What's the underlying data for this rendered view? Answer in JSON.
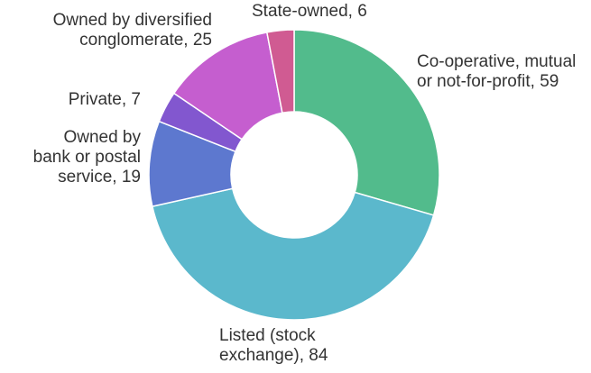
{
  "chart_data": {
    "type": "pie",
    "donut": true,
    "title": "",
    "start_angle_deg": 0,
    "direction": "clockwise",
    "slices": [
      {
        "label_lines": [
          "Co-operative, mutual",
          "or not-for-profit, 59"
        ],
        "category": "Co-operative, mutual or not-for-profit",
        "value": 59,
        "color": "#52bb8c"
      },
      {
        "label_lines": [
          "Listed (stock",
          "exchange), 84"
        ],
        "category": "Listed (stock exchange)",
        "value": 84,
        "color": "#5bb8cc"
      },
      {
        "label_lines": [
          "Owned by",
          "bank or postal",
          "service, 19"
        ],
        "category": "Owned by bank or postal service",
        "value": 19,
        "color": "#5d78cf"
      },
      {
        "label_lines": [
          "Private, 7"
        ],
        "category": "Private",
        "value": 7,
        "color": "#8257cf"
      },
      {
        "label_lines": [
          "Owned by diversified",
          "conglomerate, 25"
        ],
        "category": "Owned by diversified conglomerate",
        "value": 25,
        "color": "#c55ecf"
      },
      {
        "label_lines": [
          "State-owned, 6"
        ],
        "category": "State-owned",
        "value": 6,
        "color": "#d05b92"
      }
    ]
  }
}
